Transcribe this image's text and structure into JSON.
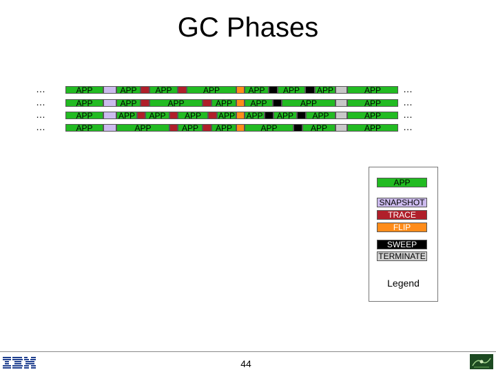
{
  "slide": {
    "title": "GC Phases",
    "page_number": "44",
    "ellipsis": "…"
  },
  "colors": {
    "app": "#22bb22",
    "snapshot": "#ccbbee",
    "trace": "#b01f2a",
    "flip": "#ff8c1a",
    "sweep": "#000000",
    "terminate": "#c8c8c8"
  },
  "timeline": {
    "rows": [
      [
        "app",
        "snapshot",
        "app",
        "trace",
        "app",
        "trace",
        "app",
        "flip",
        "app",
        "sweep",
        "app",
        "sweep",
        "app",
        "terminate",
        "app"
      ],
      [
        "app",
        "snapshot",
        "app",
        "trace",
        "app",
        "trace",
        "app",
        "flip",
        "app",
        "sweep",
        "app",
        "terminate",
        "app"
      ],
      [
        "app",
        "snapshot",
        "app",
        "trace",
        "app",
        "trace",
        "app",
        "trace",
        "app",
        "flip",
        "app",
        "sweep",
        "app",
        "sweep",
        "app",
        "terminate",
        "app"
      ],
      [
        "app",
        "snapshot",
        "app",
        "trace",
        "app",
        "trace",
        "app",
        "flip",
        "app",
        "sweep",
        "app",
        "terminate",
        "app"
      ]
    ],
    "app_label": "APP"
  },
  "legend": {
    "caption": "Legend",
    "items": [
      {
        "key": "app",
        "label": "APP"
      },
      {
        "key": "snapshot",
        "label": "SNAPSHOT"
      },
      {
        "key": "trace",
        "label": "TRACE"
      },
      {
        "key": "flip",
        "label": "FLIP"
      },
      {
        "key": "sweep",
        "label": "SWEEP"
      },
      {
        "key": "terminate",
        "label": "TERMINATE"
      }
    ]
  }
}
